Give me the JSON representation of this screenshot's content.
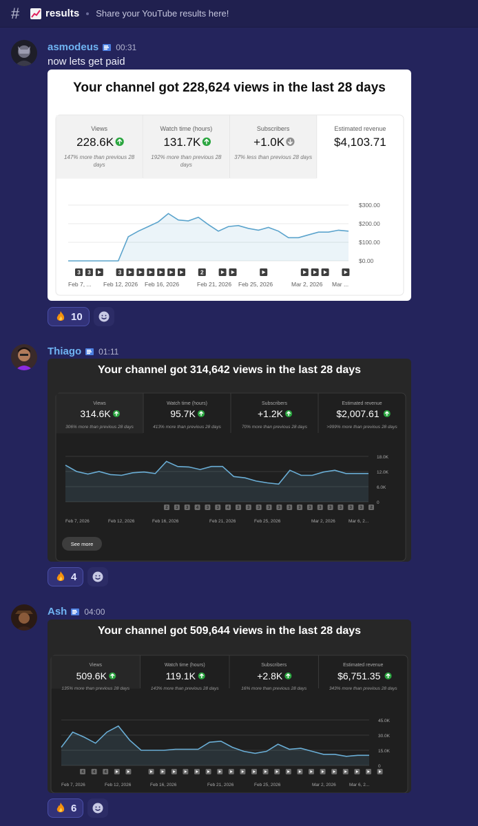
{
  "channel": {
    "name": "results",
    "topic": "Share your YouTube results here!",
    "emoji": "chart-increasing-icon"
  },
  "messages": [
    {
      "author": "asmodeus",
      "time": "00:31",
      "text": "now lets get paid",
      "name_color": "#6fb3f2",
      "reaction": {
        "emoji": "fire-icon",
        "count": "10"
      },
      "card": {
        "theme": "light",
        "title": "Your channel got 228,624 views in the last 28 days",
        "metrics": [
          {
            "label": "Views",
            "value": "228.6K",
            "trend": "up",
            "note": "147% more than previous 28 days"
          },
          {
            "label": "Watch time (hours)",
            "value": "131.7K",
            "trend": "up",
            "note": "192% more than previous 28 days"
          },
          {
            "label": "Subscribers",
            "value": "+1.0K",
            "trend": "down",
            "note": "37% less than previous 28 days"
          },
          {
            "label": "Estimated revenue",
            "value": "$4,103.71",
            "trend": "none",
            "note": ""
          }
        ],
        "chart_data": {
          "type": "area",
          "series_label": "Estimated revenue",
          "y_ticks": [
            "$300.00",
            "$200.00",
            "$100.00",
            "$0.00"
          ],
          "ylim": [
            0,
            300
          ],
          "x_labels": [
            "Feb 7, ...",
            "Feb 12, 2026",
            "Feb 16, 2026",
            "Feb 21, 2026",
            "Feb 25, 2026",
            "Mar 2, 2026",
            "Mar ..."
          ],
          "values": [
            0,
            0,
            0,
            0,
            0,
            0,
            130,
            160,
            185,
            210,
            255,
            220,
            215,
            235,
            195,
            160,
            185,
            190,
            175,
            165,
            180,
            160,
            125,
            125,
            140,
            155,
            155,
            165,
            160
          ],
          "markers": [
            "3",
            "3",
            "▶",
            "",
            "3",
            "▶",
            "▶",
            "▶",
            "▶",
            "▶",
            "▶",
            "",
            "2",
            "",
            "▶",
            "▶",
            "",
            "",
            "▶",
            "",
            "",
            "",
            "▶",
            "▶",
            "▶",
            "",
            "▶"
          ]
        }
      }
    },
    {
      "author": "Thiago",
      "time": "01:11",
      "text": "",
      "name_color": "#6fb3f2",
      "reaction": {
        "emoji": "fire-icon",
        "count": "4"
      },
      "card": {
        "theme": "dark",
        "title": "Your channel got 314,642 views in the last 28 days",
        "see_more": "See more",
        "metrics": [
          {
            "label": "Views",
            "value": "314.6K",
            "trend": "up",
            "note": "306% more than previous 28 days"
          },
          {
            "label": "Watch time (hours)",
            "value": "95.7K",
            "trend": "up",
            "note": "413% more than previous 28 days"
          },
          {
            "label": "Subscribers",
            "value": "+1.2K",
            "trend": "up",
            "note": "70% more than previous 28 days"
          },
          {
            "label": "Estimated revenue",
            "value": "$2,007.61",
            "trend": "up",
            "note": ">999% more than previous 28 days"
          }
        ],
        "chart_data": {
          "type": "area",
          "series_label": "Views",
          "y_ticks": [
            "18.0K",
            "12.0K",
            "6.0K",
            "0"
          ],
          "ylim": [
            0,
            18000
          ],
          "x_labels": [
            "Feb 7, 2026",
            "Feb 12, 2026",
            "Feb 16, 2026",
            "Feb 21, 2026",
            "Feb 25, 2026",
            "Mar 2, 2026",
            "Mar 6, 2..."
          ],
          "values": [
            14500,
            12000,
            11000,
            12000,
            10800,
            10500,
            11500,
            11800,
            11200,
            16000,
            14000,
            13800,
            12800,
            14000,
            14000,
            10000,
            9500,
            8200,
            7500,
            7000,
            12500,
            10500,
            10500,
            11800,
            12500,
            11200,
            11200,
            11200
          ],
          "markers": [
            "2",
            "3",
            "3",
            "4",
            "3",
            "3",
            "4",
            "3",
            "3",
            "3",
            "3",
            "3",
            "3",
            "3",
            "3",
            "3",
            "3",
            "3",
            "3",
            "3",
            "2"
          ]
        }
      }
    },
    {
      "author": "Ash",
      "time": "04:00",
      "text": "",
      "name_color": "#6fb3f2",
      "reaction": {
        "emoji": "fire-icon",
        "count": "6"
      },
      "card": {
        "theme": "dark",
        "title": "Your channel got 509,644 views in the last 28 days",
        "metrics": [
          {
            "label": "Views",
            "value": "509.6K",
            "trend": "up",
            "note": "135% more than previous 28 days"
          },
          {
            "label": "Watch time (hours)",
            "value": "119.1K",
            "trend": "up",
            "note": "143% more than previous 28 days"
          },
          {
            "label": "Subscribers",
            "value": "+2.8K",
            "trend": "up",
            "note": "16% more than previous 28 days"
          },
          {
            "label": "Estimated revenue",
            "value": "$6,751.35",
            "trend": "up",
            "note": "343% more than previous 28 days"
          }
        ],
        "chart_data": {
          "type": "area",
          "series_label": "Views",
          "y_ticks": [
            "45.0K",
            "30.0K",
            "15.0K",
            "0"
          ],
          "ylim": [
            0,
            45000
          ],
          "x_labels": [
            "Feb 7, 2026",
            "Feb 12, 2026",
            "Feb 16, 2026",
            "Feb 21, 2026",
            "Feb 25, 2026",
            "Mar 2, 2026",
            "Mar 6, 2..."
          ],
          "values": [
            18000,
            33000,
            28000,
            22000,
            33000,
            39000,
            25000,
            15000,
            15000,
            15000,
            16000,
            16000,
            16000,
            23000,
            24000,
            18000,
            14000,
            12000,
            14000,
            21000,
            16000,
            17000,
            14000,
            11000,
            11000,
            9000,
            10000,
            10000
          ],
          "markers": [
            "4",
            "4",
            "4",
            "▶",
            "▶",
            "",
            "▶",
            "▶",
            "▶",
            "▶",
            "▶",
            "▶",
            "▶",
            "▶",
            "▶",
            "▶",
            "▶",
            "▶",
            "▶",
            "▶",
            "▶",
            "▶",
            "▶",
            "▶",
            "▶",
            "▶",
            "▶"
          ]
        }
      }
    }
  ]
}
